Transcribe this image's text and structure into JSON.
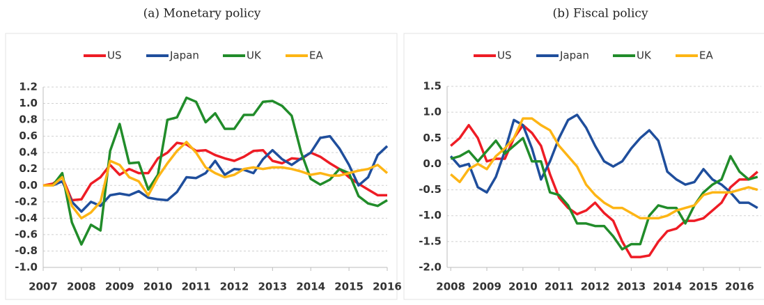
{
  "chart_data": [
    {
      "type": "line",
      "title": "(a) Monetary policy",
      "x": [
        2007,
        2007.25,
        2007.5,
        2007.75,
        2008,
        2008.25,
        2008.5,
        2008.75,
        2009,
        2009.25,
        2009.5,
        2009.75,
        2010,
        2010.25,
        2010.5,
        2010.75,
        2011,
        2011.25,
        2011.5,
        2011.75,
        2012,
        2012.25,
        2012.5,
        2012.75,
        2013,
        2013.25,
        2013.5,
        2013.75,
        2014,
        2014.25,
        2014.5,
        2014.75,
        2015,
        2015.25,
        2015.5,
        2015.75,
        2016
      ],
      "series": [
        {
          "name": "US",
          "color": "#ee1c25",
          "values": [
            0,
            0.02,
            0.1,
            -0.18,
            -0.17,
            0.02,
            0.1,
            0.25,
            0.13,
            0.2,
            0.15,
            0.15,
            0.33,
            0.4,
            0.52,
            0.5,
            0.42,
            0.43,
            0.37,
            0.33,
            0.3,
            0.35,
            0.42,
            0.43,
            0.3,
            0.27,
            0.33,
            0.32,
            0.4,
            0.35,
            0.27,
            0.2,
            0.1,
            0.02,
            -0.05,
            -0.12,
            -0.12
          ]
        },
        {
          "name": "Japan",
          "color": "#1f4e9c",
          "values": [
            0,
            0,
            0.05,
            -0.2,
            -0.32,
            -0.2,
            -0.25,
            -0.12,
            -0.1,
            -0.12,
            -0.07,
            -0.15,
            -0.17,
            -0.18,
            -0.08,
            0.1,
            0.09,
            0.15,
            0.3,
            0.13,
            0.2,
            0.19,
            0.15,
            0.32,
            0.43,
            0.32,
            0.25,
            0.33,
            0.4,
            0.58,
            0.6,
            0.45,
            0.25,
            0.0,
            0.1,
            0.37,
            0.48
          ]
        },
        {
          "name": "UK",
          "color": "#218c2a",
          "values": [
            0,
            0,
            0.15,
            -0.45,
            -0.72,
            -0.48,
            -0.55,
            0.42,
            0.75,
            0.27,
            0.28,
            -0.05,
            0.13,
            0.8,
            0.83,
            1.07,
            1.02,
            0.77,
            0.88,
            0.69,
            0.69,
            0.86,
            0.86,
            1.02,
            1.03,
            0.97,
            0.85,
            0.4,
            0.08,
            0.01,
            0.07,
            0.2,
            0.15,
            -0.13,
            -0.22,
            -0.25,
            -0.18
          ]
        },
        {
          "name": "EA",
          "color": "#fdb515",
          "values": [
            0,
            0,
            0.1,
            -0.25,
            -0.4,
            -0.33,
            -0.2,
            0.3,
            0.25,
            0.1,
            0.05,
            -0.12,
            0.1,
            0.27,
            0.42,
            0.53,
            0.4,
            0.22,
            0.15,
            0.1,
            0.13,
            0.2,
            0.22,
            0.2,
            0.22,
            0.22,
            0.2,
            0.17,
            0.13,
            0.15,
            0.12,
            0.12,
            0.15,
            0.18,
            0.2,
            0.25,
            0.15
          ]
        }
      ],
      "xlim": [
        2007,
        2016
      ],
      "xticks": [
        2007,
        2008,
        2009,
        2010,
        2011,
        2012,
        2013,
        2014,
        2015,
        2016
      ],
      "ylim": [
        -1.0,
        1.2
      ],
      "yticks": [
        1.2,
        {
          "value": 1.0,
          "label": "1.0"
        },
        0.8,
        0.6,
        0.4,
        0.2,
        {
          "value": 0,
          "label": "0.0"
        },
        -0.2,
        -0.4,
        -0.6,
        -0.8,
        {
          "value": -1.0,
          "label": "-1.0"
        }
      ],
      "grid": true,
      "legend": "top"
    },
    {
      "type": "line",
      "title": "(b) Fiscal policy",
      "x": [
        2008,
        2008.25,
        2008.5,
        2008.75,
        2009,
        2009.25,
        2009.5,
        2009.75,
        2010,
        2010.25,
        2010.5,
        2010.75,
        2011,
        2011.25,
        2011.5,
        2011.75,
        2012,
        2012.25,
        2012.5,
        2012.75,
        2013,
        2013.25,
        2013.5,
        2013.75,
        2014,
        2014.25,
        2014.5,
        2014.75,
        2015,
        2015.25,
        2015.5,
        2015.75,
        2016,
        2016.25,
        2016.5
      ],
      "series": [
        {
          "name": "US",
          "color": "#ee1c25",
          "values": [
            0.35,
            0.5,
            0.75,
            0.5,
            0.05,
            0.1,
            0.1,
            0.5,
            0.75,
            0.6,
            0.35,
            -0.2,
            -0.65,
            -0.85,
            -0.97,
            -0.9,
            -0.75,
            -0.95,
            -1.1,
            -1.5,
            -1.8,
            -1.8,
            -1.77,
            -1.5,
            -1.3,
            -1.25,
            -1.1,
            -1.1,
            -1.05,
            -0.9,
            -0.75,
            -0.45,
            -0.3,
            -0.3,
            -0.15
          ]
        },
        {
          "name": "Japan",
          "color": "#1f4e9c",
          "values": [
            0.15,
            -0.05,
            0,
            -0.45,
            -0.55,
            -0.25,
            0.25,
            0.85,
            0.75,
            0.3,
            -0.3,
            0.05,
            0.5,
            0.85,
            0.95,
            0.7,
            0.35,
            0.05,
            -0.05,
            0.05,
            0.3,
            0.5,
            0.65,
            0.45,
            -0.15,
            -0.3,
            -0.4,
            -0.35,
            -0.1,
            -0.3,
            -0.4,
            -0.55,
            -0.75,
            -0.75,
            -0.85
          ]
        },
        {
          "name": "UK",
          "color": "#218c2a",
          "values": [
            0.1,
            0.15,
            0.25,
            0.05,
            0.25,
            0.45,
            0.2,
            0.35,
            0.5,
            0.05,
            0.05,
            -0.55,
            -0.6,
            -0.8,
            -1.15,
            -1.15,
            -1.2,
            -1.2,
            -1.4,
            -1.65,
            -1.55,
            -1.55,
            -1.0,
            -0.8,
            -0.85,
            -0.85,
            -1.15,
            -0.8,
            -0.55,
            -0.4,
            -0.3,
            0.15,
            -0.15,
            -0.3,
            -0.25
          ]
        },
        {
          "name": "EA",
          "color": "#fdb515",
          "values": [
            -0.2,
            -0.35,
            -0.1,
            0.0,
            -0.1,
            0.15,
            0.3,
            0.5,
            0.88,
            0.88,
            0.75,
            0.65,
            0.35,
            0.15,
            -0.05,
            -0.4,
            -0.6,
            -0.75,
            -0.85,
            -0.85,
            -0.95,
            -1.05,
            -1.05,
            -1.05,
            -1.0,
            -0.9,
            -0.85,
            -0.8,
            -0.6,
            -0.55,
            -0.55,
            -0.55,
            -0.5,
            -0.45,
            -0.5
          ]
        }
      ],
      "xlim": [
        2007.9,
        2016.6
      ],
      "xticks": [
        2008,
        2009,
        2010,
        2011,
        2012,
        2013,
        2014,
        2015,
        2016
      ],
      "ylim": [
        -2.0,
        1.5
      ],
      "yticks": [
        1.5,
        {
          "value": 1.0,
          "label": "1.0"
        },
        0.5,
        {
          "value": 0,
          "label": "0.0"
        },
        -0.5,
        {
          "value": -1.0,
          "label": "-1.0"
        },
        -1.5,
        {
          "value": -2.0,
          "label": "-2.0"
        }
      ],
      "grid": true,
      "legend": "top"
    }
  ]
}
